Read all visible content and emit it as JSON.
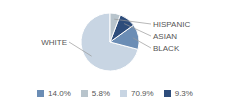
{
  "chart_data": {
    "type": "pie",
    "categories": [
      "WHITE",
      "BLACK",
      "ASIAN",
      "HISPANIC"
    ],
    "values": [
      70.9,
      14.0,
      9.3,
      5.8
    ],
    "value_labels": [
      "70.9%",
      "14.0%",
      "9.3%",
      "5.8%"
    ],
    "colors": [
      "#c8d5e3",
      "#6b8db5",
      "#2e4d7b",
      "#b8c4cc"
    ],
    "legend": "bottom"
  }
}
